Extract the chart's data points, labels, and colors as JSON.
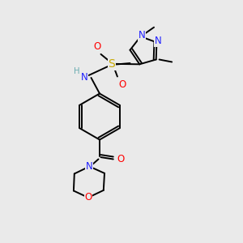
{
  "background_color": "#eaeaea",
  "atom_colors": {
    "C": "#000000",
    "N": "#2020ff",
    "O": "#ff0000",
    "S": "#c8a800",
    "H": "#6aacb0"
  },
  "figsize": [
    3.0,
    3.0
  ],
  "dpi": 100,
  "lw": 1.4,
  "fontsize": 8.5
}
